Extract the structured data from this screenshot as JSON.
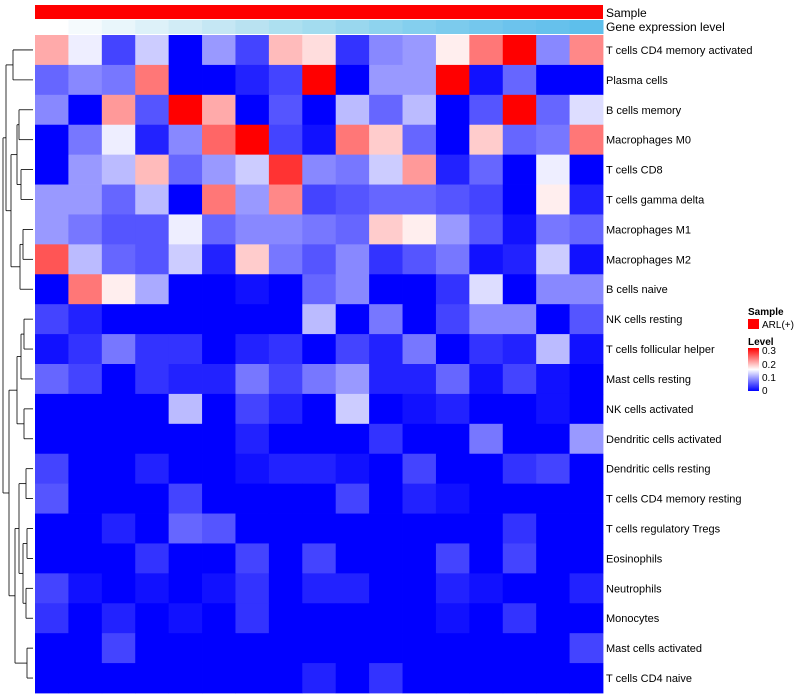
{
  "chart_data": {
    "type": "heatmap",
    "annotations": [
      {
        "name": "Sample",
        "value_label": "ARL(+)",
        "color": "#ff0000"
      },
      {
        "name": "Gene expression level",
        "colors": [
          "#ffffff",
          "#f5fafd",
          "#e9f6fb",
          "#ddf1f9",
          "#d1ecf6",
          "#c5e7f4",
          "#b9e2f1",
          "#ade0f0",
          "#a3dcef",
          "#99d7ee",
          "#8ed3ee",
          "#84cfee",
          "#7ccbed",
          "#74c7ed",
          "#6cc3ed",
          "#66c1ec",
          "#5ebfeb"
        ]
      }
    ],
    "rows": [
      "T cells CD4 memory activated",
      "Plasma cells",
      "B cells memory",
      "Macrophages M0",
      "T cells CD8",
      "T cells gamma delta",
      "Macrophages M1",
      "Macrophages M2",
      "B cells naive",
      "NK cells resting",
      "T cells follicular helper",
      "Mast cells resting",
      "NK cells activated",
      "Dendritic cells activated",
      "Dendritic cells resting",
      "T cells CD4 memory resting",
      "T cells regulatory  Tregs",
      "Eosinophils",
      "Neutrophils",
      "Monocytes",
      "Mast cells activated",
      "T cells CD4 naive"
    ],
    "columns": 17,
    "values": [
      [
        0.2,
        0.14,
        0.04,
        0.12,
        0.0,
        0.09,
        0.04,
        0.19,
        0.17,
        0.03,
        0.08,
        0.09,
        0.16,
        0.23,
        0.3,
        0.08,
        0.22
      ],
      [
        0.06,
        0.08,
        0.07,
        0.23,
        0.0,
        0.0,
        0.02,
        0.04,
        0.3,
        0.0,
        0.09,
        0.09,
        0.3,
        0.01,
        0.06,
        0.0,
        0.0
      ],
      [
        0.08,
        0.0,
        0.21,
        0.05,
        0.3,
        0.2,
        0.0,
        0.05,
        0.0,
        0.11,
        0.06,
        0.11,
        0.0,
        0.05,
        0.3,
        0.06,
        0.13
      ],
      [
        0.0,
        0.07,
        0.14,
        0.02,
        0.08,
        0.24,
        0.3,
        0.04,
        0.01,
        0.23,
        0.18,
        0.06,
        0.0,
        0.18,
        0.06,
        0.07,
        0.23
      ],
      [
        0.0,
        0.09,
        0.11,
        0.19,
        0.06,
        0.09,
        0.12,
        0.27,
        0.08,
        0.07,
        0.12,
        0.21,
        0.02,
        0.06,
        0.0,
        0.14,
        0.0
      ],
      [
        0.09,
        0.09,
        0.06,
        0.11,
        0.0,
        0.23,
        0.09,
        0.22,
        0.04,
        0.05,
        0.06,
        0.06,
        0.05,
        0.04,
        0.0,
        0.16,
        0.02
      ],
      [
        0.09,
        0.07,
        0.05,
        0.05,
        0.14,
        0.06,
        0.08,
        0.08,
        0.07,
        0.06,
        0.18,
        0.16,
        0.09,
        0.05,
        0.01,
        0.07,
        0.06
      ],
      [
        0.25,
        0.11,
        0.06,
        0.05,
        0.12,
        0.02,
        0.18,
        0.07,
        0.05,
        0.08,
        0.03,
        0.05,
        0.07,
        0.01,
        0.02,
        0.12,
        0.01
      ],
      [
        0.0,
        0.23,
        0.16,
        0.1,
        0.0,
        0.0,
        0.01,
        0.0,
        0.06,
        0.08,
        0.0,
        0.0,
        0.03,
        0.13,
        0.0,
        0.08,
        0.08
      ],
      [
        0.04,
        0.02,
        0.0,
        0.0,
        0.0,
        0.0,
        0.0,
        0.0,
        0.11,
        0.0,
        0.07,
        0.0,
        0.04,
        0.08,
        0.08,
        0.0,
        0.05
      ],
      [
        0.01,
        0.03,
        0.07,
        0.03,
        0.03,
        0.0,
        0.02,
        0.03,
        0.0,
        0.04,
        0.02,
        0.07,
        0.0,
        0.03,
        0.02,
        0.11,
        0.01
      ],
      [
        0.06,
        0.04,
        0.0,
        0.03,
        0.02,
        0.02,
        0.07,
        0.04,
        0.07,
        0.09,
        0.02,
        0.02,
        0.06,
        0.01,
        0.04,
        0.01,
        0.0
      ],
      [
        0.0,
        0.0,
        0.0,
        0.0,
        0.11,
        0.0,
        0.04,
        0.02,
        0.0,
        0.12,
        0.0,
        0.01,
        0.02,
        0.0,
        0.0,
        0.01,
        0.0
      ],
      [
        0.0,
        0.0,
        0.0,
        0.0,
        0.0,
        0.0,
        0.02,
        0.0,
        0.0,
        0.0,
        0.03,
        0.0,
        0.0,
        0.07,
        0.0,
        0.0,
        0.09
      ],
      [
        0.04,
        0.0,
        0.0,
        0.02,
        0.0,
        0.0,
        0.01,
        0.02,
        0.02,
        0.01,
        0.0,
        0.04,
        0.0,
        0.0,
        0.03,
        0.04,
        0.0
      ],
      [
        0.05,
        0.0,
        0.0,
        0.0,
        0.04,
        0.0,
        0.0,
        0.0,
        0.0,
        0.04,
        0.0,
        0.02,
        0.01,
        0.0,
        0.0,
        0.0,
        0.0
      ],
      [
        0.0,
        0.0,
        0.02,
        0.0,
        0.06,
        0.05,
        0.0,
        0.0,
        0.0,
        0.0,
        0.0,
        0.0,
        0.0,
        0.0,
        0.03,
        0.0,
        0.0
      ],
      [
        0.0,
        0.0,
        0.0,
        0.03,
        0.0,
        0.0,
        0.04,
        0.0,
        0.04,
        0.0,
        0.0,
        0.0,
        0.04,
        0.0,
        0.04,
        0.0,
        0.0
      ],
      [
        0.04,
        0.01,
        0.0,
        0.01,
        0.0,
        0.01,
        0.03,
        0.0,
        0.02,
        0.02,
        0.0,
        0.0,
        0.02,
        0.01,
        0.0,
        0.0,
        0.02
      ],
      [
        0.03,
        0.0,
        0.02,
        0.0,
        0.01,
        0.0,
        0.03,
        0.0,
        0.0,
        0.0,
        0.0,
        0.0,
        0.01,
        0.0,
        0.03,
        0.0,
        0.0
      ],
      [
        0.0,
        0.0,
        0.04,
        0.0,
        0.0,
        0.0,
        0.0,
        0.0,
        0.0,
        0.0,
        0.0,
        0.0,
        0.0,
        0.0,
        0.0,
        0.0,
        0.04
      ],
      [
        0.0,
        0.0,
        0.0,
        0.0,
        0.0,
        0.0,
        0.0,
        0.0,
        0.02,
        0.0,
        0.03,
        0.0,
        0.0,
        0.0,
        0.0,
        0.0,
        0.0
      ]
    ],
    "color_scale": {
      "min": 0,
      "mid": 0.15,
      "max": 0.3,
      "low_color": "#0000ff",
      "mid_color": "#ffffff",
      "high_color": "#ff0000"
    },
    "legend": {
      "sample_title": "Sample",
      "sample_entry": "ARL(+)",
      "level_title": "Level",
      "level_ticks": [
        "0.3",
        "0.2",
        "0.1",
        "0"
      ]
    },
    "row_dendrogram": true,
    "column_dendrogram": false
  }
}
